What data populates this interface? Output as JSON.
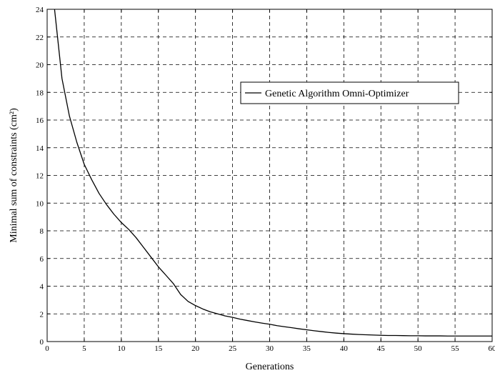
{
  "chart_data": {
    "type": "line",
    "title": "",
    "xlabel": "Generations",
    "ylabel": "Minimal sum of constraints (cm²)",
    "xlim": [
      0,
      60
    ],
    "ylim": [
      0,
      24
    ],
    "xticks": [
      0,
      5,
      10,
      15,
      20,
      25,
      30,
      35,
      40,
      45,
      50,
      55,
      60
    ],
    "xtick_labels": [
      "0",
      "5",
      "10",
      "15",
      "20",
      "25",
      "30",
      "35",
      "40",
      "45",
      "50",
      "55",
      "60"
    ],
    "yticks": [
      0,
      2,
      4,
      6,
      8,
      10,
      12,
      14,
      16,
      18,
      20,
      22,
      24
    ],
    "ytick_labels": [
      "0",
      "2",
      "4",
      "6",
      "8",
      "10",
      "12",
      "14",
      "16",
      "18",
      "20",
      "22",
      "24"
    ],
    "grid": true,
    "legend": {
      "position": "upper-right",
      "entries": [
        "Genetic Algorithm Omni-Optimizer"
      ]
    },
    "series": [
      {
        "name": "Genetic Algorithm Omni-Optimizer",
        "color": "#000000",
        "x": [
          1,
          2,
          3,
          4,
          5,
          6,
          7,
          8,
          9,
          10,
          11,
          12,
          13,
          14,
          15,
          16,
          17,
          18,
          19,
          20,
          21,
          22,
          23,
          24,
          25,
          26,
          27,
          28,
          29,
          30,
          31,
          32,
          33,
          34,
          35,
          36,
          37,
          38,
          39,
          40,
          41,
          42,
          43,
          44,
          45,
          46,
          47,
          48,
          49,
          50,
          51,
          52,
          53,
          54,
          55,
          56,
          57,
          58,
          59,
          60
        ],
        "y": [
          24,
          19,
          16.3,
          14.4,
          12.8,
          11.7,
          10.7,
          9.9,
          9.2,
          8.6,
          8.1,
          7.5,
          6.8,
          6.1,
          5.4,
          4.8,
          4.2,
          3.4,
          2.9,
          2.6,
          2.35,
          2.15,
          2.0,
          1.85,
          1.75,
          1.62,
          1.52,
          1.42,
          1.33,
          1.25,
          1.15,
          1.07,
          1.0,
          0.92,
          0.85,
          0.78,
          0.72,
          0.66,
          0.61,
          0.57,
          0.54,
          0.51,
          0.49,
          0.47,
          0.45,
          0.44,
          0.44,
          0.43,
          0.42,
          0.42,
          0.41,
          0.41,
          0.41,
          0.4,
          0.4,
          0.4,
          0.4,
          0.4,
          0.4,
          0.4
        ]
      }
    ]
  }
}
